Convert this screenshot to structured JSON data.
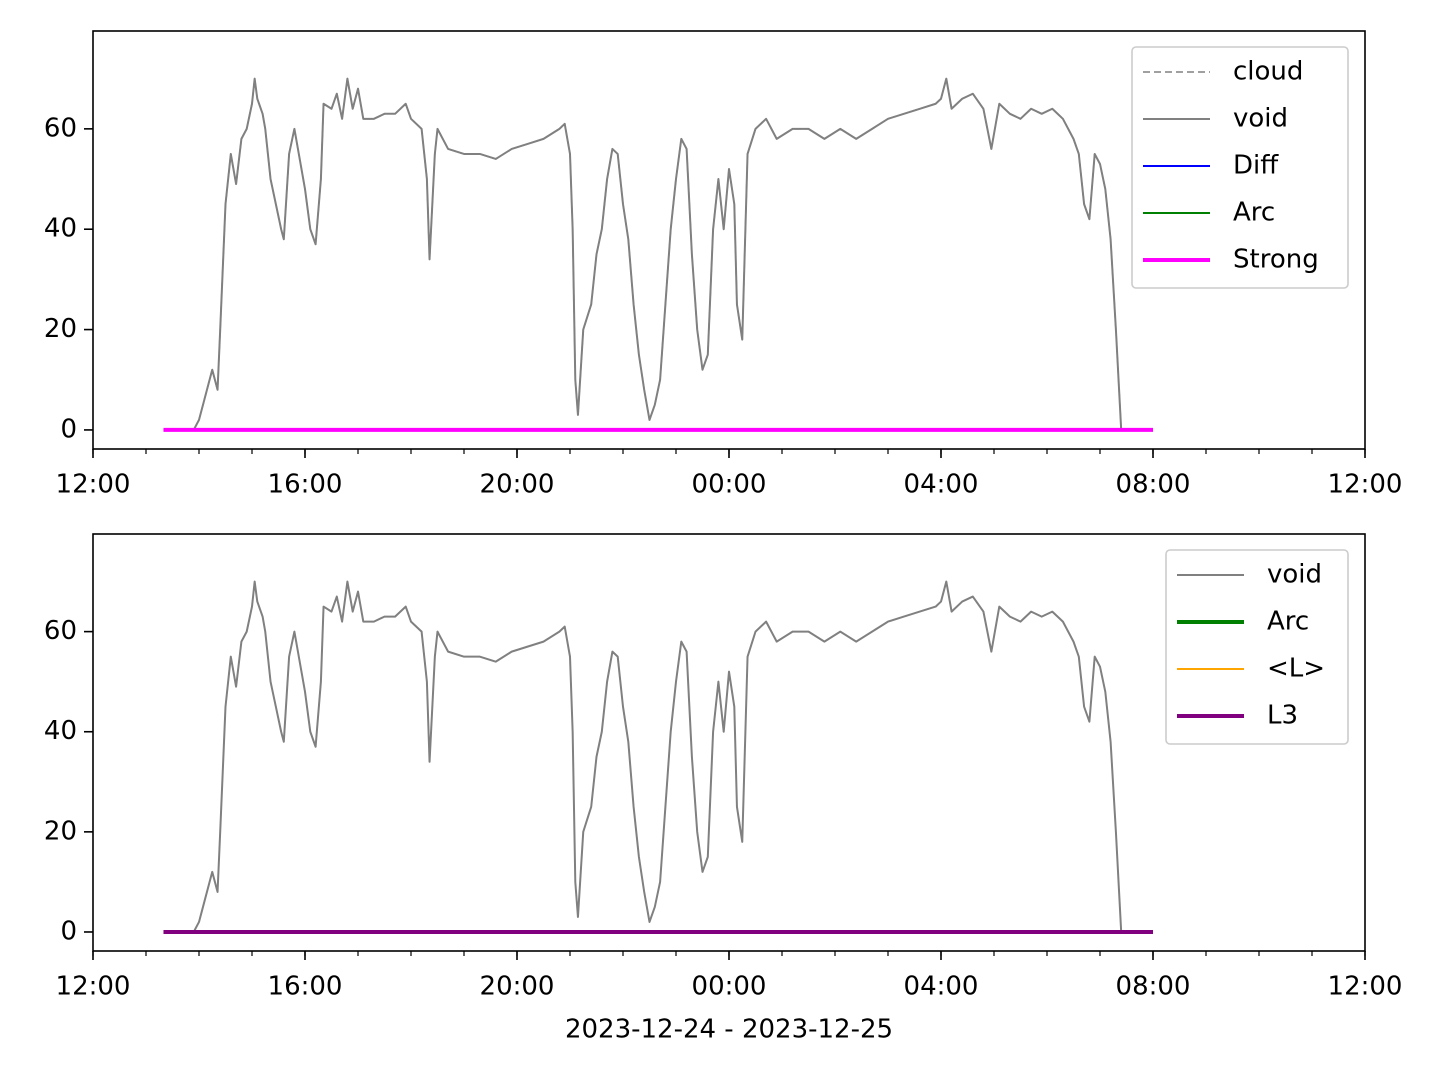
{
  "chart_data": [
    {
      "type": "line",
      "legend": "upper right",
      "xminor_interval": 1,
      "xlim": [
        12,
        36
      ],
      "ylim": [
        -3.8,
        79.5
      ],
      "xticks": [
        {
          "value": 12,
          "label": "12:00"
        },
        {
          "value": 16,
          "label": "16:00"
        },
        {
          "value": 20,
          "label": "20:00"
        },
        {
          "value": 24,
          "label": "00:00"
        },
        {
          "value": 28,
          "label": "04:00"
        },
        {
          "value": 32,
          "label": "08:00"
        },
        {
          "value": 36,
          "label": "12:00"
        }
      ],
      "yticks": [
        0,
        20,
        40,
        60
      ],
      "x": [
        13.9,
        14.0,
        14.1,
        14.2,
        14.25,
        14.35,
        14.4,
        14.5,
        14.6,
        14.7,
        14.8,
        14.9,
        15.0,
        15.05,
        15.1,
        15.2,
        15.25,
        15.35,
        15.45,
        15.55,
        15.6,
        15.7,
        15.8,
        15.9,
        16.0,
        16.1,
        16.2,
        16.3,
        16.35,
        16.5,
        16.6,
        16.7,
        16.8,
        16.9,
        17.0,
        17.1,
        17.3,
        17.5,
        17.7,
        17.9,
        18.0,
        18.2,
        18.3,
        18.35,
        18.45,
        18.5,
        18.7,
        19.0,
        19.3,
        19.6,
        19.9,
        20.2,
        20.5,
        20.8,
        20.9,
        21.0,
        21.05,
        21.1,
        21.15,
        21.25,
        21.4,
        21.5,
        21.6,
        21.7,
        21.8,
        21.9,
        22.0,
        22.1,
        22.2,
        22.3,
        22.4,
        22.5,
        22.6,
        22.7,
        22.8,
        22.9,
        23.0,
        23.1,
        23.2,
        23.3,
        23.4,
        23.5,
        23.6,
        23.7,
        23.8,
        23.9,
        24.0,
        24.1,
        24.15,
        24.25,
        24.35,
        24.5,
        24.7,
        24.9,
        25.2,
        25.5,
        25.8,
        26.1,
        26.4,
        26.7,
        27.0,
        27.3,
        27.6,
        27.9,
        28.0,
        28.1,
        28.2,
        28.4,
        28.6,
        28.8,
        28.95,
        29.1,
        29.3,
        29.5,
        29.7,
        29.9,
        30.1,
        30.3,
        30.5,
        30.6,
        30.7,
        30.8,
        30.9,
        31.0,
        31.1,
        31.2,
        31.3,
        31.4
      ],
      "series": [
        {
          "name": "cloud",
          "color": "#808080",
          "linestyle": "dashed",
          "linewidth": 1.5,
          "values": [
            0,
            2,
            6,
            10,
            12,
            8,
            20,
            45,
            55,
            49,
            58,
            60,
            65,
            70,
            66,
            63,
            60,
            50,
            45,
            40,
            38,
            55,
            60,
            54,
            48,
            40,
            37,
            50,
            65,
            64,
            67,
            62,
            70,
            64,
            68,
            62,
            62,
            63,
            63,
            65,
            62,
            60,
            50,
            34,
            55,
            60,
            56,
            55,
            55,
            54,
            56,
            57,
            58,
            60,
            61,
            55,
            40,
            10,
            3,
            20,
            25,
            35,
            40,
            50,
            56,
            55,
            45,
            38,
            25,
            15,
            8,
            2,
            5,
            10,
            25,
            40,
            50,
            58,
            56,
            35,
            20,
            12,
            15,
            40,
            50,
            40,
            52,
            45,
            25,
            18,
            55,
            60,
            62,
            58,
            60,
            60,
            58,
            60,
            58,
            60,
            62,
            63,
            64,
            65,
            66,
            70,
            64,
            66,
            67,
            64,
            56,
            65,
            63,
            62,
            64,
            63,
            64,
            62,
            58,
            55,
            45,
            42,
            55,
            53,
            48,
            38,
            20,
            0
          ]
        },
        {
          "name": "void",
          "color": "#808080",
          "linewidth": 2,
          "values": [
            0,
            2,
            6,
            10,
            12,
            8,
            20,
            45,
            55,
            49,
            58,
            60,
            65,
            70,
            66,
            63,
            60,
            50,
            45,
            40,
            38,
            55,
            60,
            54,
            48,
            40,
            37,
            50,
            65,
            64,
            67,
            62,
            70,
            64,
            68,
            62,
            62,
            63,
            63,
            65,
            62,
            60,
            50,
            34,
            55,
            60,
            56,
            55,
            55,
            54,
            56,
            57,
            58,
            60,
            61,
            55,
            40,
            10,
            3,
            20,
            25,
            35,
            40,
            50,
            56,
            55,
            45,
            38,
            25,
            15,
            8,
            2,
            5,
            10,
            25,
            40,
            50,
            58,
            56,
            35,
            20,
            12,
            15,
            40,
            50,
            40,
            52,
            45,
            25,
            18,
            55,
            60,
            62,
            58,
            60,
            60,
            58,
            60,
            58,
            60,
            62,
            63,
            64,
            65,
            66,
            70,
            64,
            66,
            67,
            64,
            56,
            65,
            63,
            62,
            64,
            63,
            64,
            62,
            58,
            55,
            45,
            42,
            55,
            53,
            48,
            38,
            20,
            0
          ]
        },
        {
          "name": "Diff",
          "color": "#0000ff",
          "linewidth": 2,
          "x": [
            13.33,
            32
          ],
          "values": [
            0,
            0
          ]
        },
        {
          "name": "Arc",
          "color": "#008000",
          "linewidth": 2,
          "x": [
            13.33,
            32
          ],
          "values": [
            0,
            0
          ]
        },
        {
          "name": "Strong",
          "color": "#ff00ff",
          "linewidth": 4,
          "x": [
            13.33,
            32
          ],
          "values": [
            0,
            0
          ]
        }
      ]
    },
    {
      "type": "line",
      "legend": "upper right",
      "xminor_interval": 1,
      "xlabel": "2023-12-24 - 2023-12-25",
      "xlim": [
        12,
        36
      ],
      "ylim": [
        -3.8,
        79.5
      ],
      "xticks": [
        {
          "value": 12,
          "label": "12:00"
        },
        {
          "value": 16,
          "label": "16:00"
        },
        {
          "value": 20,
          "label": "20:00"
        },
        {
          "value": 24,
          "label": "00:00"
        },
        {
          "value": 28,
          "label": "04:00"
        },
        {
          "value": 32,
          "label": "08:00"
        },
        {
          "value": 36,
          "label": "12:00"
        }
      ],
      "yticks": [
        0,
        20,
        40,
        60
      ],
      "x": [
        13.9,
        14.0,
        14.1,
        14.2,
        14.25,
        14.35,
        14.4,
        14.5,
        14.6,
        14.7,
        14.8,
        14.9,
        15.0,
        15.05,
        15.1,
        15.2,
        15.25,
        15.35,
        15.45,
        15.55,
        15.6,
        15.7,
        15.8,
        15.9,
        16.0,
        16.1,
        16.2,
        16.3,
        16.35,
        16.5,
        16.6,
        16.7,
        16.8,
        16.9,
        17.0,
        17.1,
        17.3,
        17.5,
        17.7,
        17.9,
        18.0,
        18.2,
        18.3,
        18.35,
        18.45,
        18.5,
        18.7,
        19.0,
        19.3,
        19.6,
        19.9,
        20.2,
        20.5,
        20.8,
        20.9,
        21.0,
        21.05,
        21.1,
        21.15,
        21.25,
        21.4,
        21.5,
        21.6,
        21.7,
        21.8,
        21.9,
        22.0,
        22.1,
        22.2,
        22.3,
        22.4,
        22.5,
        22.6,
        22.7,
        22.8,
        22.9,
        23.0,
        23.1,
        23.2,
        23.3,
        23.4,
        23.5,
        23.6,
        23.7,
        23.8,
        23.9,
        24.0,
        24.1,
        24.15,
        24.25,
        24.35,
        24.5,
        24.7,
        24.9,
        25.2,
        25.5,
        25.8,
        26.1,
        26.4,
        26.7,
        27.0,
        27.3,
        27.6,
        27.9,
        28.0,
        28.1,
        28.2,
        28.4,
        28.6,
        28.8,
        28.95,
        29.1,
        29.3,
        29.5,
        29.7,
        29.9,
        30.1,
        30.3,
        30.5,
        30.6,
        30.7,
        30.8,
        30.9,
        31.0,
        31.1,
        31.2,
        31.3,
        31.4
      ],
      "series": [
        {
          "name": "void",
          "color": "#808080",
          "linewidth": 2,
          "values": [
            0,
            2,
            6,
            10,
            12,
            8,
            20,
            45,
            55,
            49,
            58,
            60,
            65,
            70,
            66,
            63,
            60,
            50,
            45,
            40,
            38,
            55,
            60,
            54,
            48,
            40,
            37,
            50,
            65,
            64,
            67,
            62,
            70,
            64,
            68,
            62,
            62,
            63,
            63,
            65,
            62,
            60,
            50,
            34,
            55,
            60,
            56,
            55,
            55,
            54,
            56,
            57,
            58,
            60,
            61,
            55,
            40,
            10,
            3,
            20,
            25,
            35,
            40,
            50,
            56,
            55,
            45,
            38,
            25,
            15,
            8,
            2,
            5,
            10,
            25,
            40,
            50,
            58,
            56,
            35,
            20,
            12,
            15,
            40,
            50,
            40,
            52,
            45,
            25,
            18,
            55,
            60,
            62,
            58,
            60,
            60,
            58,
            60,
            58,
            60,
            62,
            63,
            64,
            65,
            66,
            70,
            64,
            66,
            67,
            64,
            56,
            65,
            63,
            62,
            64,
            63,
            64,
            62,
            58,
            55,
            45,
            42,
            55,
            53,
            48,
            38,
            20,
            0
          ]
        },
        {
          "name": "Arc",
          "color": "#008000",
          "linewidth": 4,
          "x": [
            13.33,
            32
          ],
          "values": [
            0,
            0
          ]
        },
        {
          "name": "<L>",
          "color": "#ffa500",
          "linewidth": 2,
          "x": [
            13.33,
            32
          ],
          "values": [
            0,
            0
          ]
        },
        {
          "name": "L3",
          "color": "#800080",
          "linewidth": 4,
          "x": [
            13.33,
            32
          ],
          "values": [
            0,
            0
          ]
        }
      ]
    }
  ]
}
